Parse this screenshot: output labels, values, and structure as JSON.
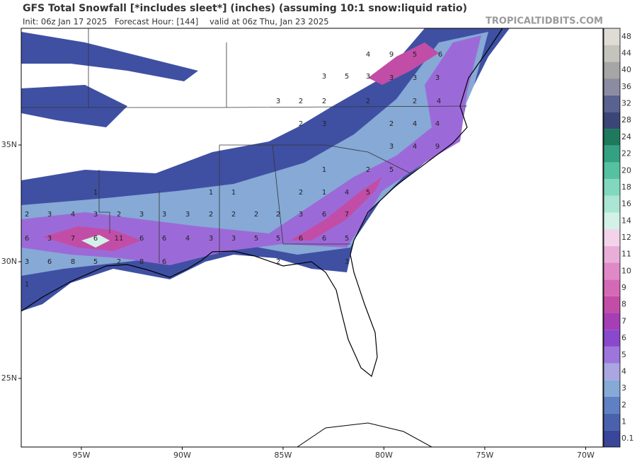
{
  "header": {
    "title": "GFS Total Snowfall [*includes sleet*] (inches) (assuming 10:1 snow:liquid ratio)",
    "init": "Init: 06z Jan 17 2025",
    "forecast_hour": "Forecast Hour: [144]",
    "valid": "valid at 06z Thu, Jan 23 2025"
  },
  "watermark": "TROPICALTIDBITS.COM",
  "colorbar": {
    "levels": [
      0.1,
      1,
      2,
      3,
      4,
      5,
      6,
      7,
      8,
      9,
      10,
      11,
      12,
      14,
      16,
      18,
      20,
      22,
      24,
      28,
      32,
      36,
      40,
      44,
      48
    ],
    "colors": [
      "#3a4699",
      "#4a62ae",
      "#5f80c2",
      "#86a9d6",
      "#a9a6e2",
      "#9c76da",
      "#8a48cc",
      "#a63fb6",
      "#c24da6",
      "#d46ab6",
      "#df8ac6",
      "#e8aed8",
      "#f3d3ea",
      "#d3f1e7",
      "#aae6d3",
      "#82d8bf",
      "#55c1a1",
      "#34a183",
      "#1d7a5c",
      "#3b4577",
      "#5a6290",
      "#8b8ca2",
      "#a6a6a6",
      "#c4c4bc",
      "#dedcd4"
    ]
  },
  "lat_labels": [
    {
      "value": 35,
      "label": "35N"
    },
    {
      "value": 30,
      "label": "30N"
    },
    {
      "value": 25,
      "label": "25N"
    }
  ],
  "lon_labels": [
    {
      "value": -95,
      "label": "95W"
    },
    {
      "value": -90,
      "label": "90W"
    },
    {
      "value": -85,
      "label": "85W"
    },
    {
      "value": -80,
      "label": "80W"
    },
    {
      "value": -75,
      "label": "75W"
    },
    {
      "value": -70,
      "label": "70W"
    }
  ],
  "contour_labels": [
    4,
    9,
    5,
    6,
    3,
    5,
    3,
    3,
    3,
    3,
    3,
    2,
    2,
    2,
    2,
    4,
    2,
    3,
    2,
    4,
    4,
    3,
    4,
    9,
    1,
    2,
    5,
    1,
    1,
    1,
    2,
    1,
    4,
    5,
    2,
    3,
    4,
    3,
    2,
    3,
    3,
    3,
    2,
    2,
    2,
    2,
    3,
    6,
    7,
    6,
    3,
    7,
    6,
    11,
    6,
    6,
    4,
    3,
    3,
    5,
    5,
    6,
    6,
    5,
    3,
    6,
    8,
    5,
    2,
    8,
    6,
    2,
    3,
    1
  ]
}
